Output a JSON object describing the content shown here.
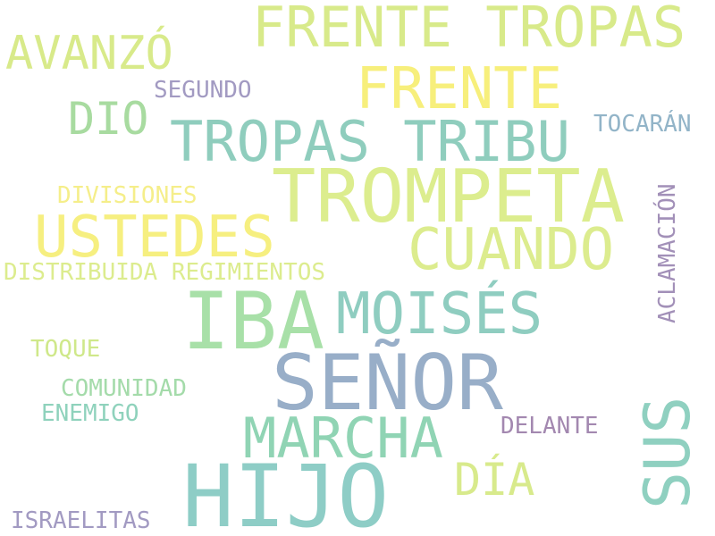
{
  "words": {
    "frente_tropas": {
      "text": "FRENTE TROPAS",
      "color": "#d8ea8a"
    },
    "avanzo": {
      "text": "AVANZÓ",
      "color": "#d8ea8a"
    },
    "frente": {
      "text": "FRENTE",
      "color": "#f7ef7c"
    },
    "segundo": {
      "text": "SEGUNDO",
      "color": "#a29ac2"
    },
    "dio": {
      "text": "DIO",
      "color": "#a8dba0"
    },
    "tropas_tribu": {
      "text": "TROPAS TRIBU",
      "color": "#8fcdbd"
    },
    "tocaran": {
      "text": "TOCARÁN",
      "color": "#92b4c8"
    },
    "trompeta": {
      "text": "TROMPETA",
      "color": "#dced8e"
    },
    "divisiones": {
      "text": "DIVISIONES",
      "color": "#f5ee8a"
    },
    "aclamacion": {
      "text": "ACLAMACIÓN",
      "color": "#a290b8"
    },
    "ustedes": {
      "text": "USTEDES",
      "color": "#f6ef80"
    },
    "cuando": {
      "text": "CUANDO",
      "color": "#dcec8e"
    },
    "distribuida": {
      "text": "DISTRIBUIDA REGIMIENTOS",
      "color": "#dcec8e"
    },
    "iba": {
      "text": "IBA",
      "color": "#a8e0a8"
    },
    "moises": {
      "text": "MOISÉS",
      "color": "#8fcdc0"
    },
    "toque": {
      "text": "TOQUE",
      "color": "#cfe88a"
    },
    "senor": {
      "text": "SEÑOR",
      "color": "#98aec8"
    },
    "comunidad": {
      "text": "COMUNIDAD",
      "color": "#a4dbaa"
    },
    "enemigo": {
      "text": "ENEMIGO",
      "color": "#8fd2bc"
    },
    "sus": {
      "text": "SUS",
      "color": "#8fd0c0"
    },
    "marcha": {
      "text": "MARCHA",
      "color": "#90d4b4"
    },
    "delante": {
      "text": "DELANTE",
      "color": "#a388b0"
    },
    "dia": {
      "text": "DÍA",
      "color": "#d8ea8c"
    },
    "hijo": {
      "text": "HIJO",
      "color": "#8ecdc6"
    },
    "israelitas": {
      "text": "ISRAELITAS",
      "color": "#a29ac2"
    }
  }
}
